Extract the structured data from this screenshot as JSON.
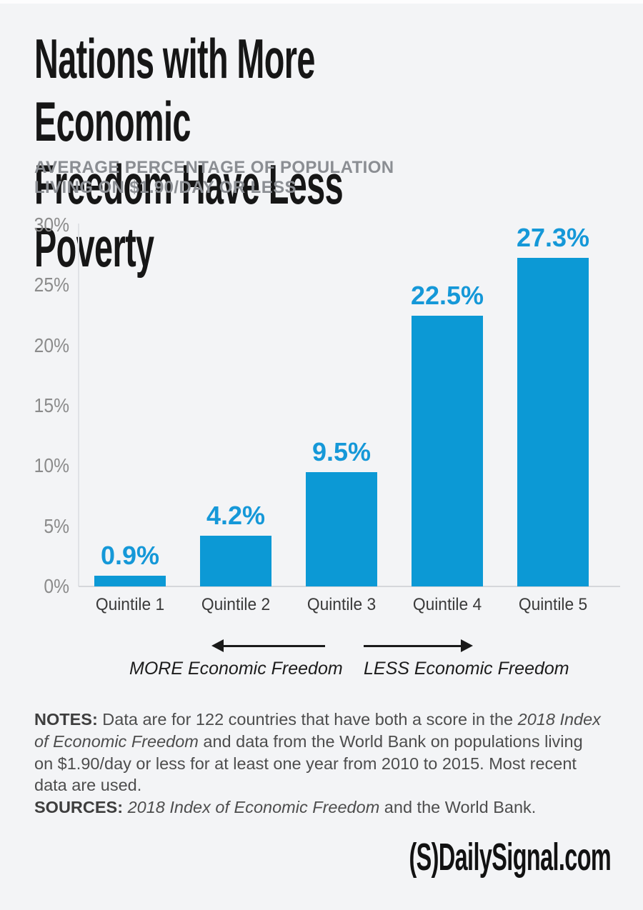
{
  "title": {
    "text": "Nations with More Economic\nFreedom Have Less Poverty"
  },
  "subtitle": {
    "text": "AVERAGE PERCENTAGE OF POPULATION\nLIVING ON $1.90/DAY OR LESS"
  },
  "chart_data": {
    "type": "bar",
    "title": "AVERAGE PERCENTAGE OF POPULATION LIVING ON $1.90/DAY OR LESS",
    "categories": [
      "Quintile 1",
      "Quintile 2",
      "Quintile 3",
      "Quintile 4",
      "Quintile 5"
    ],
    "values": [
      0.9,
      4.2,
      9.5,
      22.5,
      27.3
    ],
    "value_labels": [
      "0.9%",
      "4.2%",
      "9.5%",
      "22.5%",
      "27.3%"
    ],
    "xlabel": "",
    "ylabel": "",
    "ylim": [
      0,
      30
    ],
    "ytick_step": 5,
    "ytick_labels": [
      "0%",
      "5%",
      "10%",
      "15%",
      "20%",
      "25%",
      "30%"
    ],
    "grid": false,
    "legend": false,
    "bar_color": "#0c99d5",
    "value_label_color": "#1598d8",
    "annotations": [
      {
        "text": "MORE Economic Freedom",
        "arrow": "left"
      },
      {
        "text": "LESS Economic Freedom",
        "arrow": "right"
      }
    ]
  },
  "notes": {
    "label": "NOTES:",
    "line1_rest": " Data are for 122 countries that have both a score in the ",
    "line1_italic": "2018 Index",
    "line2_italic": "of Economic Freedom",
    "line2_rest": " and data from the World Bank on populations living",
    "line3": "on $1.90/day or less for at least one year from 2010 to 2015. Most recent",
    "line4": "data are used.",
    "sources_label": "SOURCES:",
    "sources_italic": "2018 Index of Economic Freedom",
    "sources_rest": " and the World Bank."
  },
  "footer": {
    "logo_s": "(S)",
    "logo_rest": "DailySignal.com"
  }
}
